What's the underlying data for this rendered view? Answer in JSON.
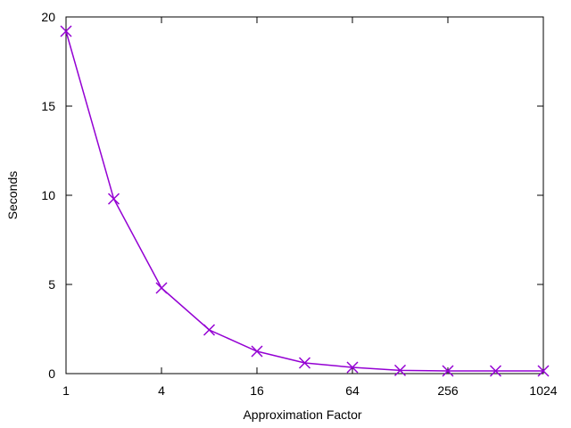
{
  "chart_data": {
    "type": "line",
    "title": "",
    "xlabel": "Approximation Factor",
    "ylabel": "Seconds",
    "x_scale": "log2",
    "xlim": [
      1,
      1024
    ],
    "ylim": [
      0,
      20
    ],
    "x_ticks": [
      1,
      4,
      16,
      64,
      256,
      1024
    ],
    "x_tick_labels": [
      "1",
      "4",
      "16",
      "64",
      "256",
      "1024"
    ],
    "y_ticks": [
      0,
      5,
      10,
      15,
      20
    ],
    "y_tick_labels": [
      "0",
      "5",
      "10",
      "15",
      "20"
    ],
    "grid": false,
    "legend": "none",
    "series": [
      {
        "color": "#9400d3",
        "marker": "x",
        "x": [
          1,
          2,
          4,
          8,
          16,
          32,
          64,
          128,
          256,
          512,
          1024
        ],
        "y": [
          19.2,
          9.8,
          4.8,
          2.45,
          1.25,
          0.6,
          0.35,
          0.18,
          0.15,
          0.15,
          0.15
        ]
      }
    ]
  }
}
